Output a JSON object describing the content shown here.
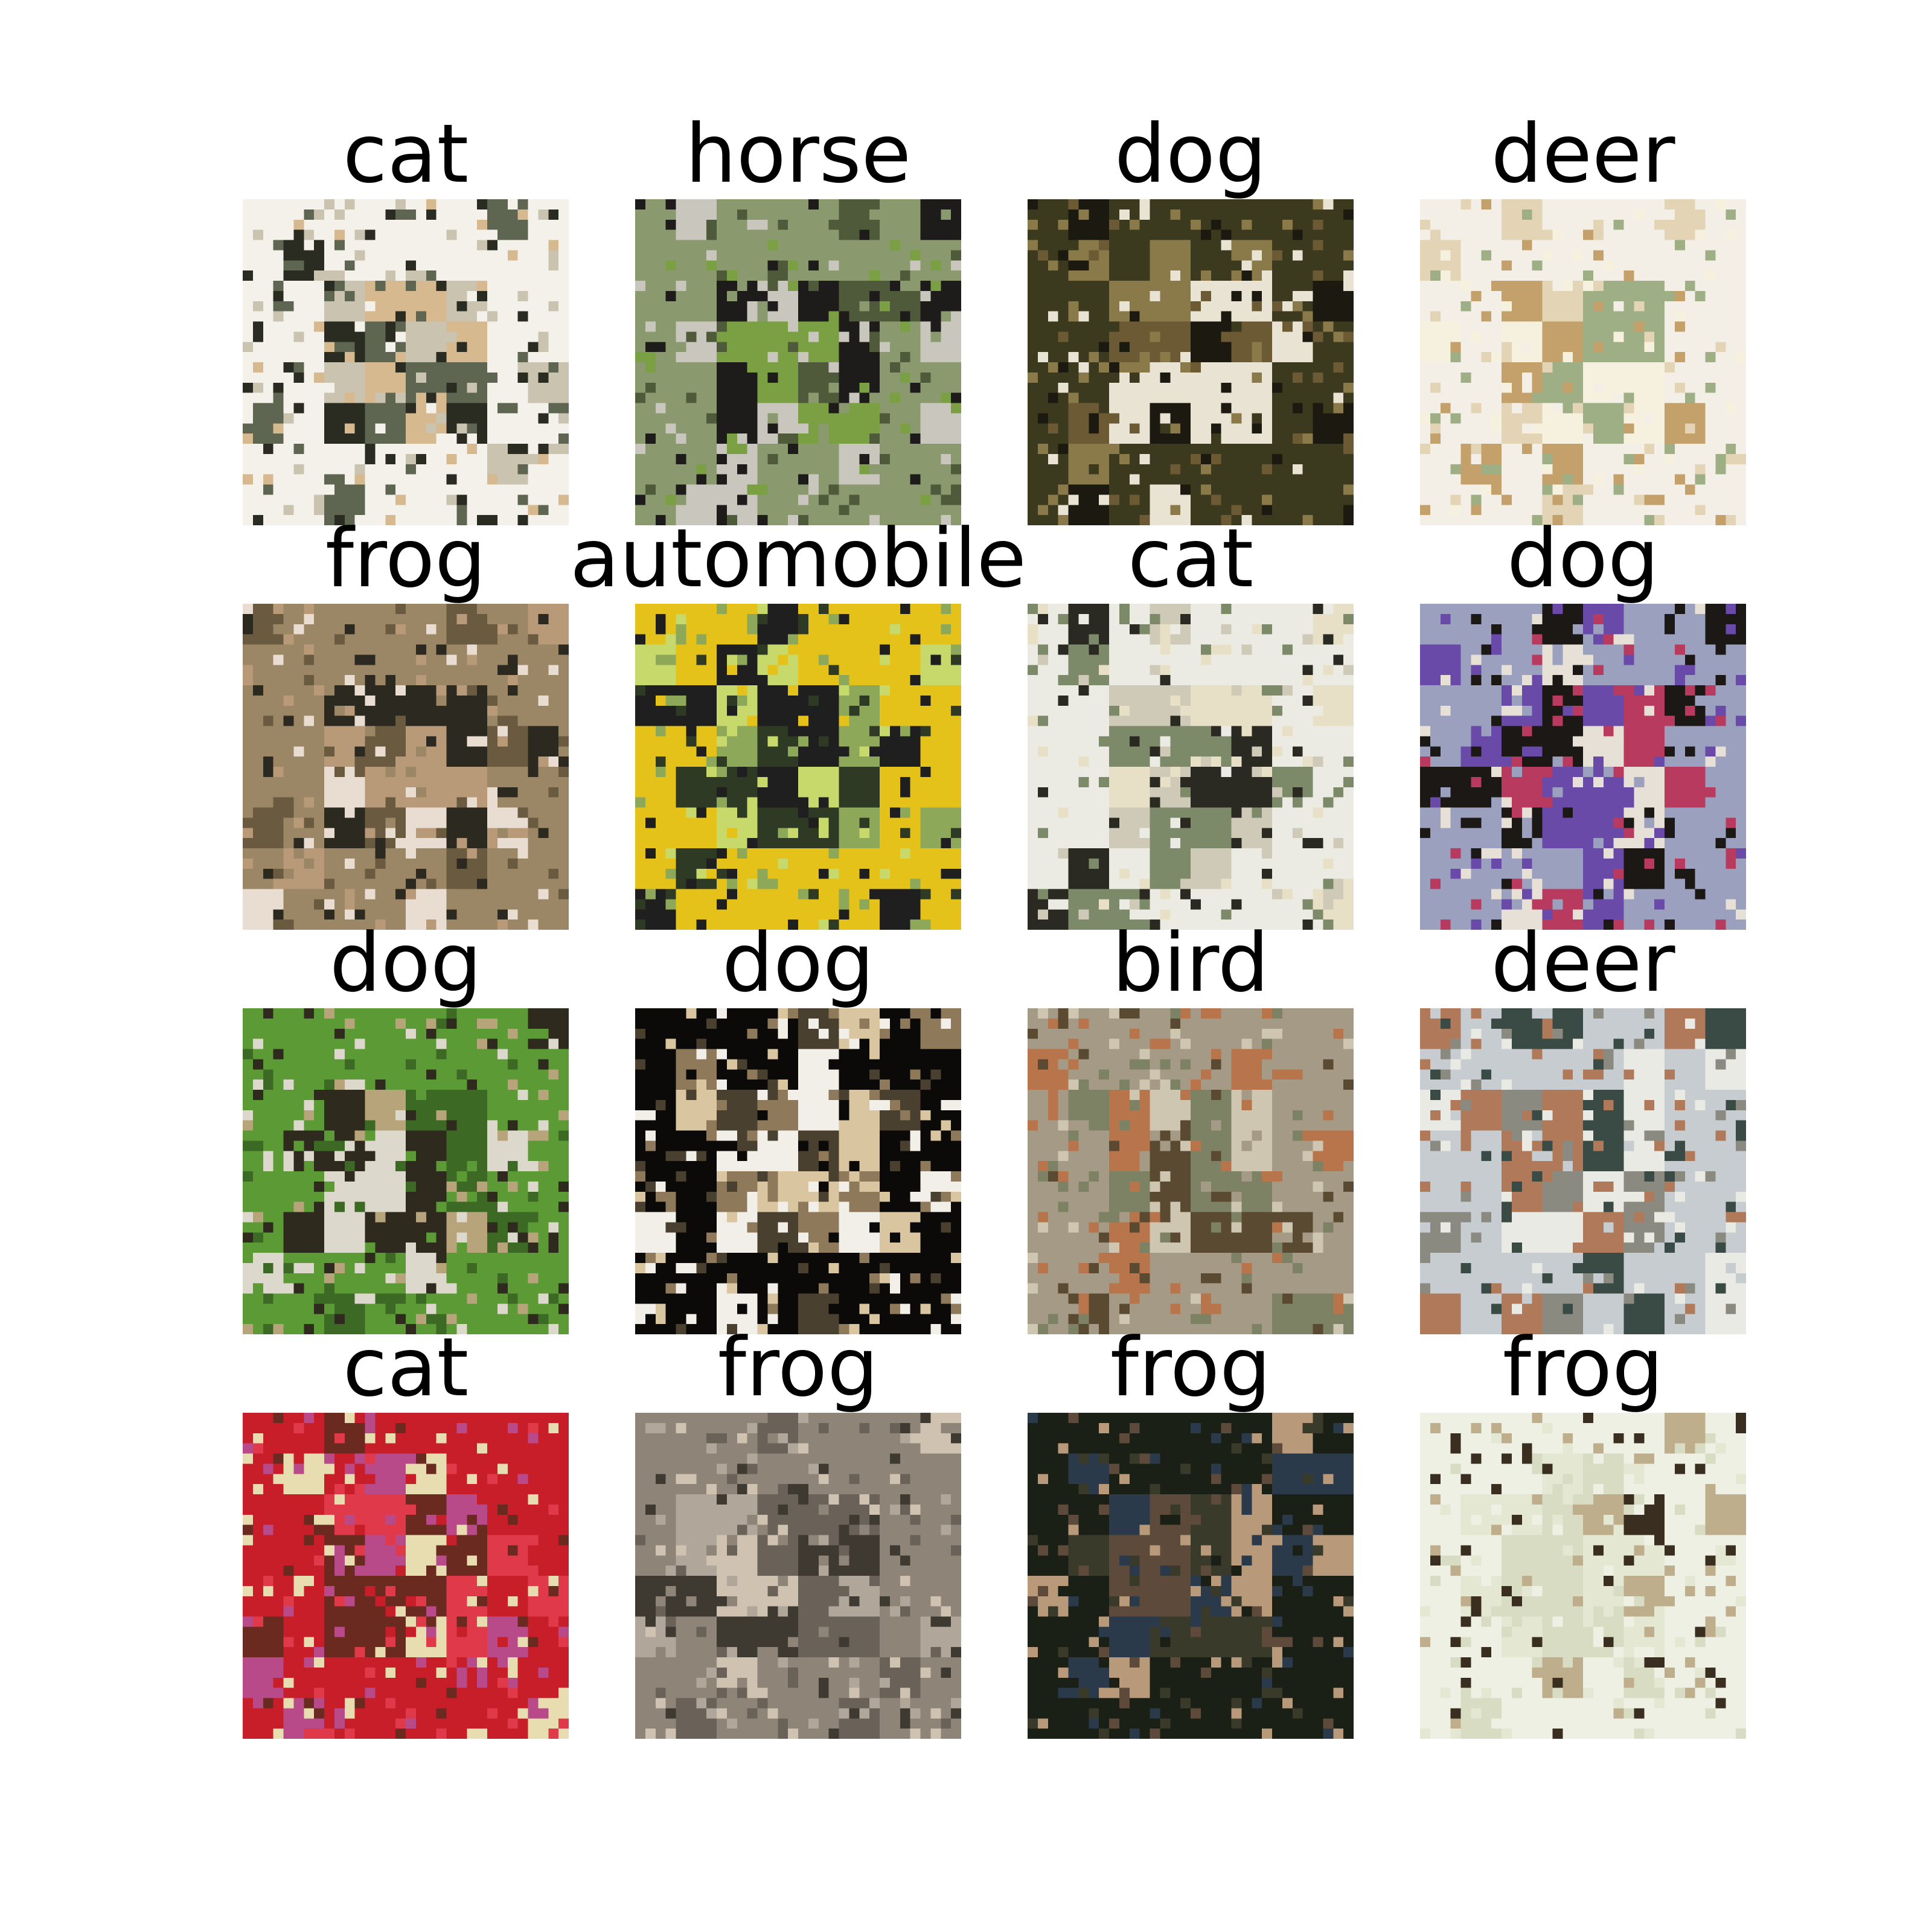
{
  "figure": {
    "panels": [
      {
        "label": "cat",
        "palette": [
          "#f4f1ea",
          "#c9c3b0",
          "#5e6651",
          "#2a2c22",
          "#d6b98f"
        ]
      },
      {
        "label": "horse",
        "palette": [
          "#8a9a6e",
          "#4f5a3a",
          "#c9c6bd",
          "#1e1c1a",
          "#7ba043"
        ]
      },
      {
        "label": "dog",
        "palette": [
          "#3c3a1e",
          "#6b5a34",
          "#e9e3d3",
          "#1c1a10",
          "#8a7a4a"
        ]
      },
      {
        "label": "deer",
        "palette": [
          "#f3efe6",
          "#e2d4b4",
          "#9eaf86",
          "#c4a06a",
          "#f6f1df"
        ]
      },
      {
        "label": "frog",
        "palette": [
          "#9b8665",
          "#6a5a40",
          "#e9ddd2",
          "#2c2a20",
          "#b89a78"
        ]
      },
      {
        "label": "automobile",
        "palette": [
          "#e4c21a",
          "#2f3a24",
          "#c6d96a",
          "#1f1f1f",
          "#8ea85a"
        ]
      },
      {
        "label": "cat",
        "palette": [
          "#ecebe3",
          "#cfcab8",
          "#2a2a22",
          "#7d8a6a",
          "#e8e0c6"
        ]
      },
      {
        "label": "dog",
        "palette": [
          "#9aa0bd",
          "#6a4aa8",
          "#e6e0d6",
          "#1c1816",
          "#b83a5e"
        ]
      },
      {
        "label": "dog",
        "palette": [
          "#5b9a34",
          "#3c6a24",
          "#dcd8cc",
          "#b8a47a",
          "#2e2a1e"
        ]
      },
      {
        "label": "dog",
        "palette": [
          "#0c0a08",
          "#d9c6a0",
          "#f2efe9",
          "#4a4030",
          "#8e7a5a"
        ]
      },
      {
        "label": "bird",
        "palette": [
          "#a59a86",
          "#b8744a",
          "#7e8264",
          "#cfc6b2",
          "#5a4a32"
        ]
      },
      {
        "label": "deer",
        "palette": [
          "#c6ccd0",
          "#3a4a44",
          "#e9eae4",
          "#8a8a80",
          "#b07a5a"
        ]
      },
      {
        "label": "cat",
        "palette": [
          "#c81e2a",
          "#e03a4a",
          "#e8ddb0",
          "#6a2a20",
          "#b84a8a"
        ]
      },
      {
        "label": "frog",
        "palette": [
          "#8e8478",
          "#6a6258",
          "#b0a69a",
          "#3e3a32",
          "#cfc2b0"
        ]
      },
      {
        "label": "frog",
        "palette": [
          "#1a2016",
          "#3a3a2a",
          "#5e4a3a",
          "#2a3a4a",
          "#b89a7a"
        ]
      },
      {
        "label": "frog",
        "palette": [
          "#eef0e4",
          "#d8dcc2",
          "#3a2e20",
          "#bfae8c",
          "#e4e8d2"
        ]
      }
    ]
  }
}
